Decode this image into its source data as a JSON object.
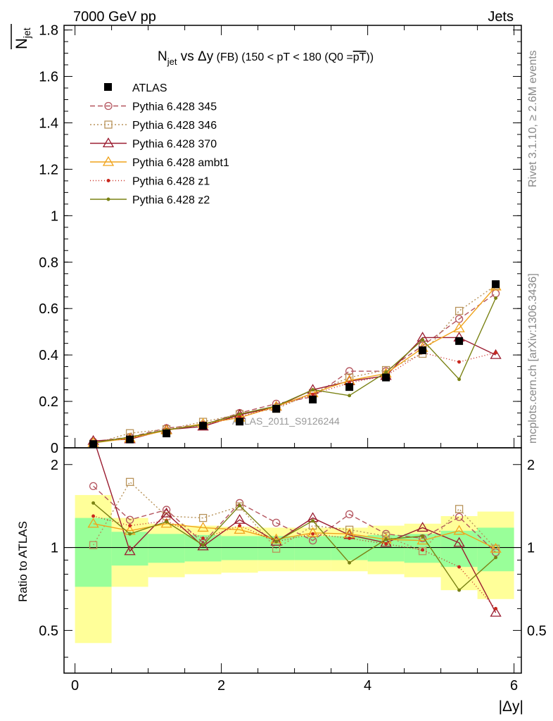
{
  "header": {
    "left": "7000 GeV pp",
    "right": "Jets",
    "side_top": "Rivet 3.1.10, ≥ 2.6M events",
    "side_bottom": "mcplots.cern.ch [arXiv:1306.3436]",
    "watermark": "ATLAS_2011_S9126244"
  },
  "chart_data": {
    "type": "line",
    "title_parts": {
      "nsub": "N",
      "jet": "jet",
      "vs": " vs ",
      "dy": "Δy",
      "fb": " (FB) ",
      "range": "(150 < pT < 180 (Q0 =",
      "pt": "pT",
      "close": "))"
    },
    "ylabel_top": {
      "n": "N",
      "sub": "jet"
    },
    "ylabel_ratio": "Ratio to ATLAS",
    "xlabel": "|Δy|",
    "xlim": [
      -0.15,
      6.1
    ],
    "ylim": [
      0,
      1.82
    ],
    "ratio_ylim": [
      0.35,
      2.3
    ],
    "x_ticks": [
      0,
      2,
      4,
      6
    ],
    "y_ticks": [
      0,
      0.2,
      0.4,
      0.6,
      0.8,
      1,
      1.2,
      1.4,
      1.6,
      1.8
    ],
    "ratio_ticks": [
      0.5,
      1,
      2
    ],
    "x": [
      0.25,
      0.75,
      1.25,
      1.75,
      2.25,
      2.75,
      3.25,
      3.75,
      4.25,
      4.75,
      5.25,
      5.75
    ],
    "atlas": {
      "name": "ATLAS",
      "values": [
        0.016,
        0.036,
        0.062,
        0.095,
        0.113,
        0.168,
        0.208,
        0.262,
        0.303,
        0.42,
        0.46,
        0.705
      ],
      "band_inner": [
        0.28,
        0.14,
        0.12,
        0.11,
        0.1,
        0.1,
        0.1,
        0.1,
        0.11,
        0.12,
        0.15,
        0.18
      ],
      "band_outer": [
        0.55,
        0.28,
        0.22,
        0.2,
        0.19,
        0.18,
        0.18,
        0.18,
        0.2,
        0.22,
        0.3,
        0.35
      ]
    },
    "series": [
      {
        "name": "Pythia 6.428 345",
        "color": "#b4545e",
        "dash": "7,4",
        "marker": "circle",
        "values": [
          0.027,
          0.046,
          0.085,
          0.1,
          0.15,
          0.19,
          0.22,
          0.33,
          0.33,
          0.44,
          0.555,
          0.665
        ],
        "ratio": [
          1.67,
          1.26,
          1.37,
          1.04,
          1.45,
          1.23,
          1.06,
          1.32,
          1.12,
          1.08,
          1.29,
          0.96
        ]
      },
      {
        "name": "Pythia 6.428 346",
        "color": "#b8935a",
        "dash": "2,3",
        "marker": "square",
        "values": [
          0.017,
          0.063,
          0.08,
          0.112,
          0.145,
          0.168,
          0.236,
          0.303,
          0.335,
          0.405,
          0.59,
          0.7
        ],
        "ratio": [
          1.02,
          1.73,
          1.3,
          1.28,
          1.41,
          0.99,
          1.2,
          1.16,
          1.1,
          0.97,
          1.38,
          0.99
        ]
      },
      {
        "name": "Pythia 6.428 370",
        "color": "#9a1c30",
        "dash": "",
        "marker": "triangle",
        "values": [
          0.03,
          0.037,
          0.078,
          0.092,
          0.142,
          0.177,
          0.25,
          0.287,
          0.31,
          0.475,
          0.475,
          0.4
        ],
        "ratio": [
          2.5,
          0.97,
          1.33,
          1.01,
          1.26,
          1.05,
          1.28,
          1.11,
          1.04,
          1.18,
          1.04,
          0.58
        ]
      },
      {
        "name": "Pythia 6.428 ambt1",
        "color": "#f0a31c",
        "dash": "",
        "marker": "triangle",
        "values": [
          0.021,
          0.041,
          0.075,
          0.104,
          0.13,
          0.178,
          0.235,
          0.29,
          0.32,
          0.43,
          0.515,
          0.695
        ],
        "ratio": [
          1.22,
          1.15,
          1.22,
          1.18,
          1.16,
          1.07,
          1.13,
          1.12,
          1.07,
          1.06,
          1.15,
          0.99
        ]
      },
      {
        "name": "Pythia 6.428 z1",
        "color": "#c8281e",
        "dash": "1,3",
        "marker": "dot",
        "values": [
          0.024,
          0.042,
          0.079,
          0.098,
          0.135,
          0.175,
          0.23,
          0.28,
          0.31,
          0.41,
          0.37,
          0.41
        ],
        "ratio": [
          1.3,
          1.2,
          1.25,
          1.08,
          1.2,
          1.05,
          1.12,
          1.08,
          1.03,
          0.98,
          0.85,
          0.6
        ]
      },
      {
        "name": "Pythia 6.428 z2",
        "color": "#7a8214",
        "dash": "",
        "marker": "dot",
        "values": [
          0.022,
          0.046,
          0.077,
          0.1,
          0.145,
          0.18,
          0.25,
          0.225,
          0.325,
          0.465,
          0.295,
          0.645
        ],
        "ratio": [
          1.45,
          1.12,
          1.24,
          1.02,
          1.42,
          1.05,
          1.25,
          0.88,
          1.07,
          1.1,
          0.7,
          0.92
        ]
      }
    ]
  }
}
